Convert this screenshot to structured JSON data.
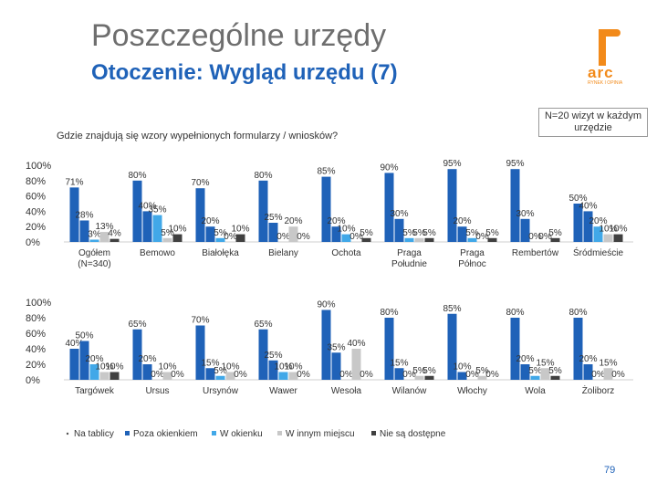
{
  "title": "Poszczególne urzędy",
  "subtitle": "Otoczenie: Wygląd urzędu (7)",
  "question": "Gdzie znajdują się wzory wypełnionych formularzy / wniosków?",
  "note": "N=20 wizyt w każdym urzędzie",
  "logo": {
    "brand": "arc",
    "tagline": "RYNEK I OPINIA"
  },
  "page_number": "79",
  "colors": {
    "Na tablicy": "#1f62b8",
    "Poza okienkiem": "#1f62b8",
    "W okienku": "#41a8e8",
    "W innym miejscu": "#c8c8c8",
    "Nie są dostępne": "#404040"
  },
  "chart_data": {
    "type": "bar",
    "ylim": [
      0,
      100
    ],
    "y_ticks": [
      "0%",
      "20%",
      "40%",
      "60%",
      "80%",
      "100%"
    ],
    "series_names": [
      "Na tablicy",
      "Poza okienkiem",
      "W okienku",
      "W innym miejscu",
      "Nie są dostępne"
    ],
    "legend": [
      "Na tablicy",
      "Poza okienkiem",
      "W okienku",
      "W innym miejscu",
      "Nie są dostępne"
    ],
    "rows": [
      {
        "groups": [
          {
            "category": "Ogółem (N=340)",
            "values": [
              71,
              28,
              3,
              13,
              4
            ],
            "labels": [
              "71%",
              "28%",
              "3%",
              "13%",
              "4%"
            ]
          },
          {
            "category": "Bemowo",
            "values": [
              80,
              40,
              35,
              5,
              10
            ],
            "labels": [
              "80%",
              "40%",
              "35%",
              "5%",
              "10%"
            ]
          },
          {
            "category": "Białołęka",
            "values": [
              70,
              20,
              5,
              0,
              10
            ],
            "labels": [
              "70%",
              "20%",
              "5%",
              "0%",
              "10%"
            ]
          },
          {
            "category": "Bielany",
            "values": [
              80,
              25,
              0,
              20,
              0
            ],
            "labels": [
              "80%",
              "25%",
              "0%",
              "20%",
              "0%"
            ]
          },
          {
            "category": "Ochota",
            "values": [
              85,
              20,
              10,
              0,
              5
            ],
            "labels": [
              "85%",
              "20%",
              "10%",
              "0%",
              "5%"
            ]
          },
          {
            "category": "Praga Południe",
            "values": [
              90,
              30,
              5,
              5,
              5
            ],
            "labels": [
              "90%",
              "30%",
              "5%",
              "5%",
              "5%"
            ]
          },
          {
            "category": "Praga Północ",
            "values": [
              95,
              20,
              5,
              0,
              5
            ],
            "labels": [
              "95%",
              "20%",
              "5%",
              "0%",
              "5%"
            ]
          },
          {
            "category": "Rembertów",
            "values": [
              95,
              30,
              0,
              0,
              5
            ],
            "labels": [
              "95%",
              "30%",
              "0%",
              "0%",
              "5%"
            ]
          },
          {
            "category": "Śródmieście",
            "values": [
              50,
              40,
              20,
              10,
              10
            ],
            "labels": [
              "50%",
              "40%",
              "20%",
              "10%",
              "10%"
            ]
          }
        ]
      },
      {
        "groups": [
          {
            "category": "Targówek",
            "values": [
              40,
              50,
              20,
              10,
              10
            ],
            "labels": [
              "40%",
              "50%",
              "20%",
              "10%",
              "10%"
            ]
          },
          {
            "category": "Ursus",
            "values": [
              65,
              20,
              0,
              10,
              0
            ],
            "labels": [
              "65%",
              "20%",
              "0%",
              "10%",
              "0%"
            ]
          },
          {
            "category": "Ursynów",
            "values": [
              70,
              15,
              5,
              10,
              0
            ],
            "labels": [
              "70%",
              "15%",
              "5%",
              "10%",
              "0%"
            ]
          },
          {
            "category": "Wawer",
            "values": [
              65,
              25,
              10,
              10,
              0
            ],
            "labels": [
              "65%",
              "25%",
              "10%",
              "10%",
              "0%"
            ]
          },
          {
            "category": "Wesoła",
            "values": [
              90,
              35,
              0,
              40,
              0
            ],
            "labels": [
              "90%",
              "35%",
              "0%",
              "40%",
              "0%"
            ]
          },
          {
            "category": "Wilanów",
            "values": [
              80,
              15,
              0,
              5,
              5
            ],
            "labels": [
              "80%",
              "15%",
              "0%",
              "5%",
              "5%"
            ]
          },
          {
            "category": "Włochy",
            "values": [
              85,
              10,
              0,
              5,
              0
            ],
            "labels": [
              "85%",
              "10%",
              "0%",
              "5%",
              "0%"
            ]
          },
          {
            "category": "Wola",
            "values": [
              80,
              20,
              5,
              15,
              5
            ],
            "labels": [
              "80%",
              "20%",
              "5%",
              "15%",
              "5%"
            ]
          },
          {
            "category": "Żoliborz",
            "values": [
              80,
              20,
              0,
              15,
              0
            ],
            "labels": [
              "80%",
              "20%",
              "0%",
              "15%",
              "0%"
            ]
          }
        ]
      }
    ]
  }
}
